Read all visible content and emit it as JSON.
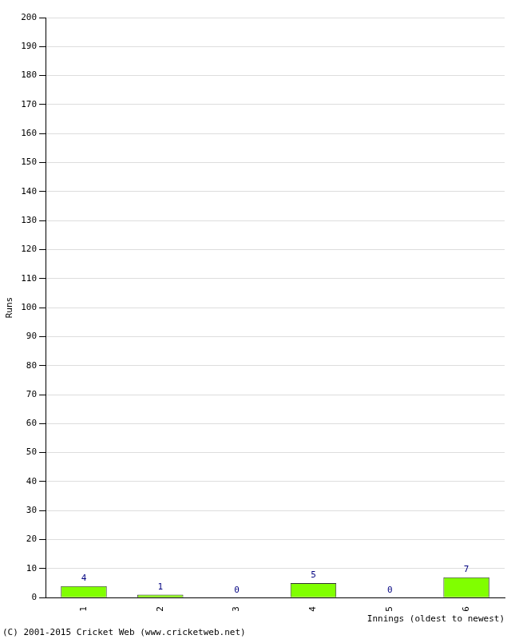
{
  "chart_data": {
    "type": "bar",
    "categories": [
      "1",
      "2",
      "3",
      "4",
      "5",
      "6"
    ],
    "values": [
      4,
      1,
      0,
      5,
      0,
      7
    ],
    "color": "#80ff00",
    "y_label": "Runs",
    "x_label": "Innings (oldest to newest)",
    "annotations": [
      "(C) 2001-2015 Cricket Web (www.cricketweb.net)"
    ],
    "ylim": [
      0,
      200
    ],
    "yticks": [
      0,
      10,
      20,
      30,
      40,
      50,
      60,
      70,
      80,
      90,
      100,
      110,
      120,
      130,
      140,
      150,
      160,
      170,
      180,
      190,
      200
    ],
    "grid": true,
    "data_labels": true
  }
}
